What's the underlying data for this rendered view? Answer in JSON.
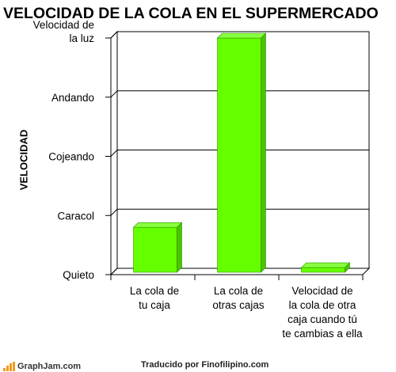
{
  "chart_data": {
    "type": "bar",
    "title": "VELOCIDAD DE LA COLA EN EL SUPERMERCADO",
    "ylabel": "VELOCIDAD",
    "xlabel": "",
    "y_ticks": [
      "Quieto",
      "Caracol",
      "Cojeando",
      "Andando",
      "Velocidad de la luz"
    ],
    "y_tick_lines": [
      [
        "Quieto"
      ],
      [
        "Caracol"
      ],
      [
        "Cojeando"
      ],
      [
        "Andando"
      ],
      [
        "Velocidad de",
        "la luz"
      ]
    ],
    "ylim": [
      0,
      4
    ],
    "categories": [
      "La cola de tu caja",
      "La cola de otras cajas",
      "Velocidad de la cola de otra caja cuando tú te cambias a ella"
    ],
    "category_lines": [
      [
        "La cola de",
        "tu caja"
      ],
      [
        "La cola de",
        "otras cajas"
      ],
      [
        "Velocidad de",
        "la cola de otra",
        "caja cuando tú",
        "te cambias a ella"
      ]
    ],
    "values": [
      0.8,
      4.0,
      0.12
    ],
    "grid": true,
    "bar_color": "#66ff00",
    "bar_side_color": "#4cc400",
    "bar_top_color": "#88ff40"
  },
  "footer": {
    "logo_text": "GraphJam.com",
    "credit": "Traducido por Finofilipino.com"
  }
}
